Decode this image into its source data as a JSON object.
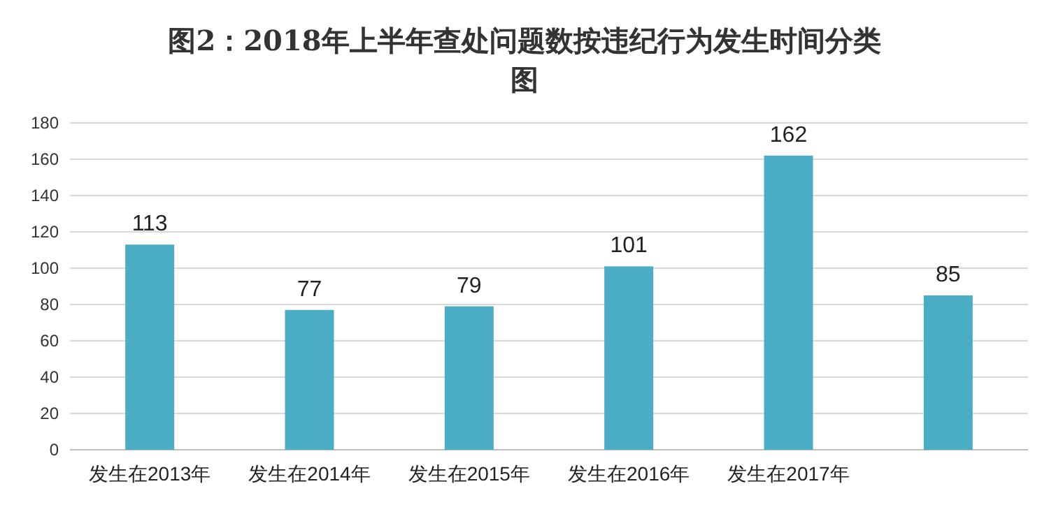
{
  "chart_data": {
    "type": "bar",
    "title": "图2：2018年上半年查处问题数按违纪行为发生时间分类图",
    "categories": [
      "发生在2013年",
      "发生在2014年",
      "发生在2015年",
      "发生在2016年",
      "发生在2017年",
      null
    ],
    "values": [
      113,
      77,
      79,
      101,
      162,
      85
    ],
    "color": "#4bacc6",
    "ylim": [
      0,
      180
    ],
    "yticks": [
      0,
      20,
      40,
      60,
      80,
      100,
      120,
      140,
      160,
      180
    ],
    "grid": "y",
    "data_labels": true
  }
}
